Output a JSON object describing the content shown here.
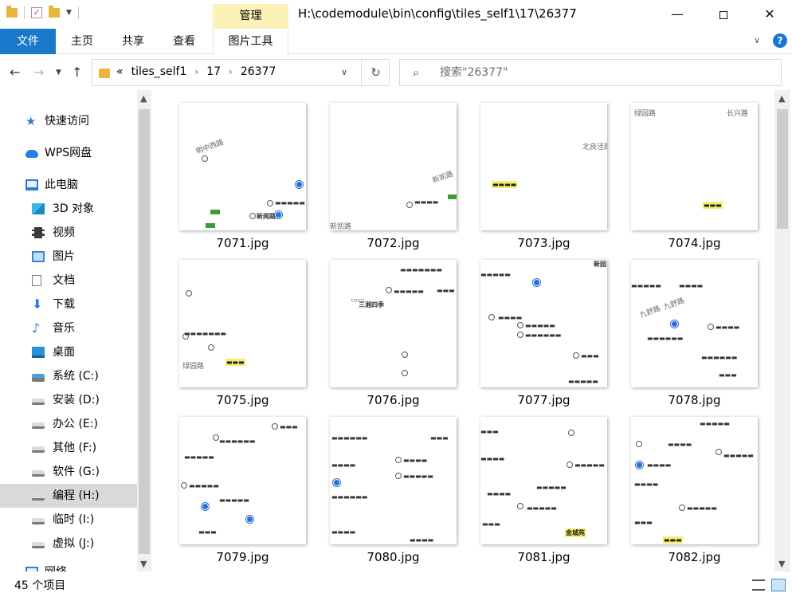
{
  "window": {
    "title": "H:\\codemodule\\bin\\config\\tiles_self1\\17\\26377",
    "context_tab": "管理",
    "minimize_glyph": "—",
    "close_glyph": "✕"
  },
  "ribbon": {
    "tabs": [
      "文件",
      "主页",
      "共享",
      "查看",
      "图片工具"
    ]
  },
  "address": {
    "overflow": "«",
    "crumbs": [
      "tiles_self1",
      "17",
      "26377"
    ]
  },
  "search": {
    "placeholder": "搜索\"26377\""
  },
  "nav": {
    "items": [
      {
        "label": "快速访问",
        "icon": "star-icon"
      },
      {
        "label": "WPS网盘",
        "icon": "cloud-icon"
      },
      {
        "label": "此电脑",
        "icon": "computer-icon"
      },
      {
        "label": "3D 对象",
        "icon": "cube-icon"
      },
      {
        "label": "视频",
        "icon": "film-icon"
      },
      {
        "label": "图片",
        "icon": "picture-icon"
      },
      {
        "label": "文档",
        "icon": "document-icon"
      },
      {
        "label": "下载",
        "icon": "download-icon"
      },
      {
        "label": "音乐",
        "icon": "music-icon"
      },
      {
        "label": "桌面",
        "icon": "desktop-icon"
      },
      {
        "label": "系统 (C:)",
        "icon": "windows-drive-icon"
      },
      {
        "label": "安装 (D:)",
        "icon": "drive-icon"
      },
      {
        "label": "办公 (E:)",
        "icon": "drive-icon"
      },
      {
        "label": "其他 (F:)",
        "icon": "drive-icon"
      },
      {
        "label": "软件 (G:)",
        "icon": "drive-icon"
      },
      {
        "label": "编程 (H:)",
        "icon": "drive-icon"
      },
      {
        "label": "临时 (I:)",
        "icon": "drive-icon"
      },
      {
        "label": "虚拟 (J:)",
        "icon": "drive-icon"
      },
      {
        "label": "网络",
        "icon": "network-icon"
      }
    ],
    "selected_index": 15
  },
  "files": [
    {
      "name": "7071.jpg",
      "labels": [
        "明中西路",
        "新闻路"
      ]
    },
    {
      "name": "7072.jpg",
      "labels": [
        "新凯路",
        "新凯路"
      ]
    },
    {
      "name": "7073.jpg",
      "labels": [
        "北良泾路"
      ]
    },
    {
      "name": "7074.jpg",
      "labels": [
        "绿园路",
        "长兴路"
      ]
    },
    {
      "name": "7075.jpg",
      "labels": [
        "绿园路"
      ]
    },
    {
      "name": "7076.jpg",
      "labels": [
        "三湘四季"
      ]
    },
    {
      "name": "7077.jpg",
      "labels": [
        "新园"
      ]
    },
    {
      "name": "7078.jpg",
      "labels": [
        "九舒路",
        "九舒路"
      ]
    },
    {
      "name": "7079.jpg",
      "labels": []
    },
    {
      "name": "7080.jpg",
      "labels": []
    },
    {
      "name": "7081.jpg",
      "labels": [
        "金城苑"
      ]
    },
    {
      "name": "7082.jpg",
      "labels": []
    }
  ],
  "status": {
    "item_count": "45 个项目"
  },
  "colors": {
    "accent": "#1979ca",
    "manage_tab": "#fcf1b6",
    "selected_nav": "#d9d9d9"
  }
}
